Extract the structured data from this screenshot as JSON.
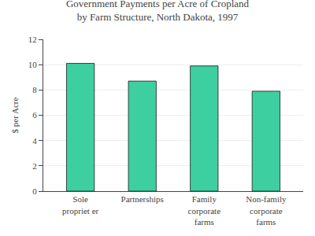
{
  "chart_data": {
    "type": "bar",
    "title": "Government Payments per Acre of Cropland\nby Farm Structure, North Dakota, 1997",
    "categories": [
      "Sole\npropriet er",
      "Partnerships",
      "Family\ncorporate\nfarms",
      "Non-family\ncorporate\nfarms"
    ],
    "values": [
      10.1,
      8.7,
      9.9,
      7.9
    ],
    "color": "#3ECFA0",
    "ylabel": "$ per Acre",
    "ylim": [
      0,
      12
    ],
    "yticks": [
      0,
      2,
      4,
      6,
      8,
      10,
      12
    ],
    "grid": true
  }
}
